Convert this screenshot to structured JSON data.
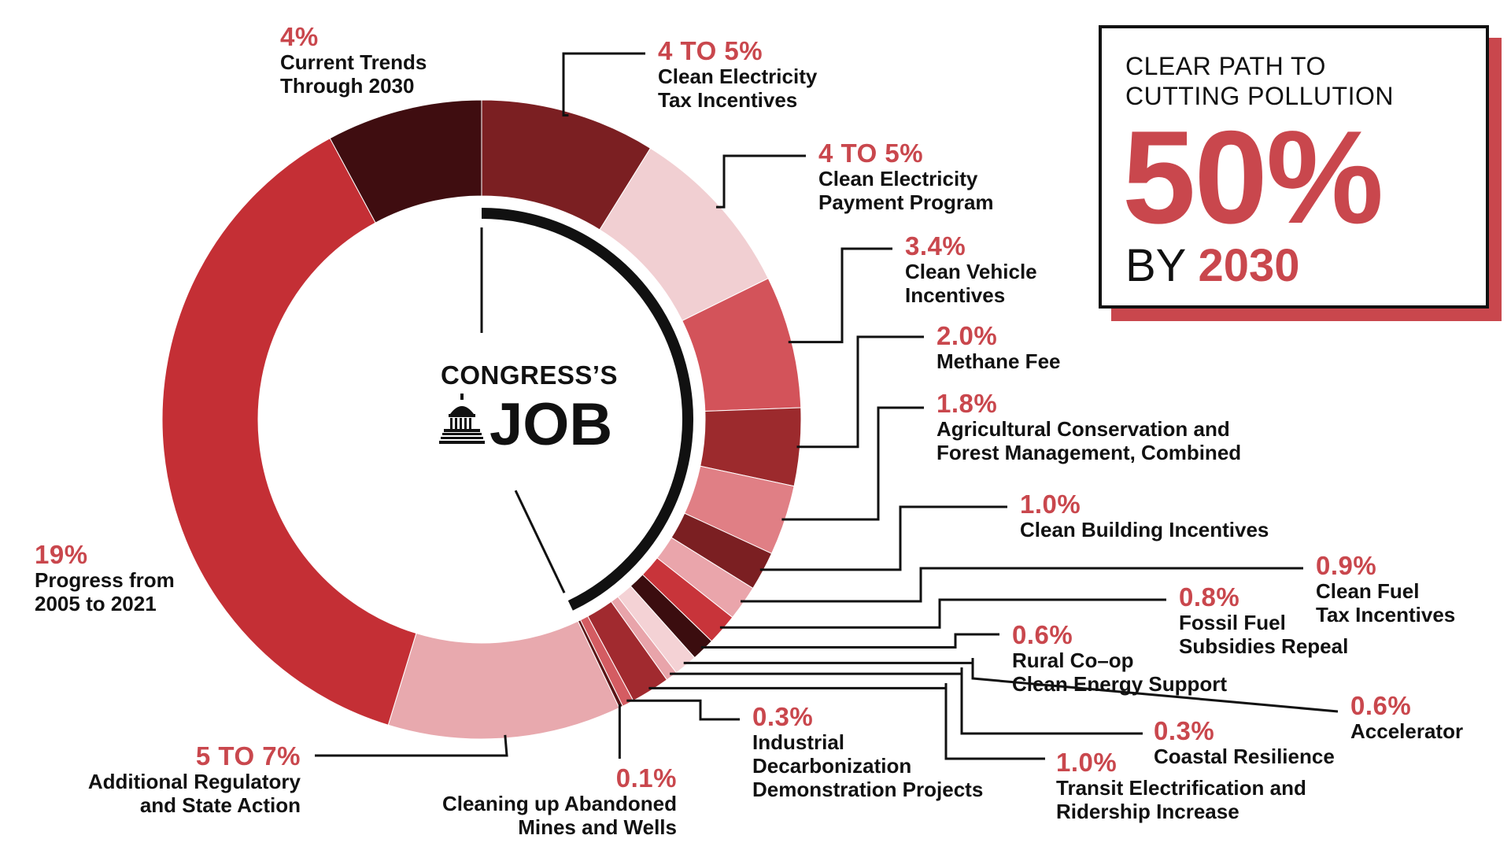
{
  "chart_data": {
    "type": "pie",
    "donut": true,
    "center_label": {
      "line1": "CONGRESS’S",
      "line2": "JOB"
    },
    "slices": [
      {
        "label": "Clean Electricity Tax Incentives",
        "value_text": "4 TO 5%",
        "value": 4.5,
        "color": "#7b1f22"
      },
      {
        "label": "Clean Electricity Payment Program",
        "value_text": "4 TO 5%",
        "value": 4.5,
        "color": "#f1cfd2"
      },
      {
        "label": "Clean Vehicle Incentives",
        "value_text": "3.4%",
        "value": 3.4,
        "color": "#d3535a"
      },
      {
        "label": "Methane Fee",
        "value_text": "2.0%",
        "value": 2.0,
        "color": "#9c2a2d"
      },
      {
        "label": "Agricultural Conservation and Forest Management, Combined",
        "value_text": "1.8%",
        "value": 1.8,
        "color": "#e07f85"
      },
      {
        "label": "Clean Building Incentives",
        "value_text": "1.0%",
        "value": 1.0,
        "color": "#7b1f22"
      },
      {
        "label": "Clean Fuel Tax Incentives",
        "value_text": "0.9%",
        "value": 0.9,
        "color": "#eaa5ab"
      },
      {
        "label": "Fossil Fuel Subsidies Repeal",
        "value_text": "0.8%",
        "value": 0.8,
        "color": "#c8343a"
      },
      {
        "label": "Rural Co–op Clean Energy Support",
        "value_text": "0.6%",
        "value": 0.6,
        "color": "#3b0d0f"
      },
      {
        "label": "Accelerator",
        "value_text": "0.6%",
        "value": 0.6,
        "color": "#f4d2d5"
      },
      {
        "label": "Coastal Resilience",
        "value_text": "0.3%",
        "value": 0.3,
        "color": "#e8a4aa"
      },
      {
        "label": "Transit Electrification and Ridership Increase",
        "value_text": "1.0%",
        "value": 1.0,
        "color": "#a12a2f"
      },
      {
        "label": "Industrial Decarbonization Demonstration Projects",
        "value_text": "0.3%",
        "value": 0.3,
        "color": "#d45c62"
      },
      {
        "label": "Cleaning up Abandoned Mines and Wells",
        "value_text": "0.1%",
        "value": 0.1,
        "color": "#5a1416"
      },
      {
        "label": "Additional Regulatory and State Action",
        "value_text": "5 TO 7%",
        "value": 6.0,
        "color": "#e8a9ae"
      },
      {
        "label": "Progress from 2005 to 2021",
        "value_text": "19%",
        "value": 19,
        "color": "#c42f35"
      },
      {
        "label": "Current Trends Through 2030",
        "value_text": "4%",
        "value": 4,
        "color": "#3f0d10"
      }
    ],
    "congress_share_slices": 14
  },
  "callout": {
    "line1": "CLEAR PATH TO",
    "line2": "CUTTING POLLUTION",
    "big": "50%",
    "by": "BY",
    "year": "2030"
  },
  "labels": [
    {
      "pct": "4 TO 5%",
      "name": "Clean Electricity\nTax Incentives"
    },
    {
      "pct": "4 TO 5%",
      "name": "Clean Electricity\nPayment Program"
    },
    {
      "pct": "3.4%",
      "name": "Clean Vehicle\nIncentives"
    },
    {
      "pct": "2.0%",
      "name": "Methane Fee"
    },
    {
      "pct": "1.8%",
      "name": "Agricultural Conservation and\nForest Management, Combined"
    },
    {
      "pct": "1.0%",
      "name": "Clean Building Incentives"
    },
    {
      "pct": "0.9%",
      "name": "Clean Fuel\nTax Incentives"
    },
    {
      "pct": "0.8%",
      "name": "Fossil Fuel\nSubsidies Repeal"
    },
    {
      "pct": "0.6%",
      "name": "Rural Co–op\nClean Energy Support"
    },
    {
      "pct": "0.6%",
      "name": "Accelerator"
    },
    {
      "pct": "0.3%",
      "name": "Coastal Resilience"
    },
    {
      "pct": "1.0%",
      "name": "Transit Electrification and\nRidership Increase"
    },
    {
      "pct": "0.3%",
      "name": "Industrial\nDecarbonization\nDemonstration Projects"
    },
    {
      "pct": "0.1%",
      "name": "Cleaning up Abandoned\nMines and Wells"
    },
    {
      "pct": "5 TO 7%",
      "name": "Additional Regulatory\nand State Action"
    },
    {
      "pct": "19%",
      "name": "Progress from\n2005 to 2021"
    },
    {
      "pct": "4%",
      "name": "Current Trends\nThrough 2030"
    }
  ]
}
